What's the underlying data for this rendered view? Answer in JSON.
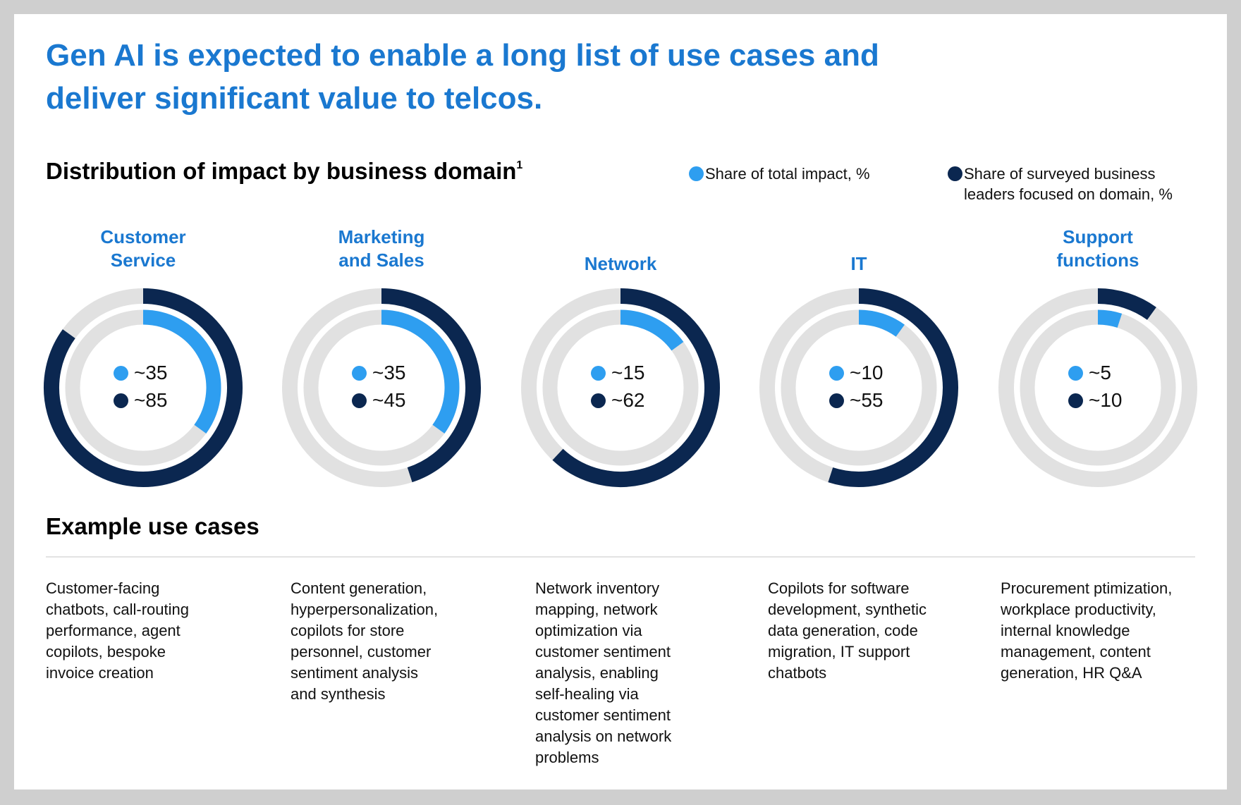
{
  "title": [
    "Gen AI is expected to enable a long list of use cases and",
    "deliver significant value to telcos."
  ],
  "colors": {
    "impact": "#2e9ef0",
    "leaders": "#0b2750",
    "track": "#e1e1e1",
    "accent": "#1a78d0"
  },
  "chart_data": {
    "type": "donut",
    "title": "Distribution of impact by business domain",
    "footnote_marker": "1",
    "legend": [
      "Share of total impact, %",
      "Share of surveyed business leaders focused on domain, %"
    ],
    "legend_placement": "top-right",
    "categories": [
      "Customer Service",
      "Marketing and Sales",
      "Network",
      "IT",
      "Support functions"
    ],
    "series": [
      {
        "name": "Share of total impact, %",
        "values": [
          35,
          35,
          15,
          10,
          5
        ],
        "labels": [
          "~35",
          "~35",
          "~15",
          "~10",
          "~5"
        ]
      },
      {
        "name": "Share of surveyed business leaders focused on domain, %",
        "values": [
          85,
          45,
          62,
          55,
          10
        ],
        "labels": [
          "~85",
          "~45",
          "~62",
          "~55",
          "~10"
        ]
      }
    ]
  },
  "domain_labels": [
    [
      "Customer",
      "Service"
    ],
    [
      "Marketing",
      "and Sales"
    ],
    [
      "Network"
    ],
    [
      "IT"
    ],
    [
      "Support",
      "functions"
    ]
  ],
  "examples": {
    "title": "Example use cases",
    "items": [
      [
        "Customer-facing",
        "chatbots, call-routing",
        "performance, agent",
        "copilots, bespoke",
        "invoice creation"
      ],
      [
        "Content generation,",
        "hyperpersonalization,",
        "copilots for store",
        "personnel, customer",
        "sentiment analysis",
        "and synthesis"
      ],
      [
        "Network inventory",
        "mapping, network",
        "optimization via",
        "customer sentiment",
        "analysis, enabling",
        "self-healing via",
        "customer sentiment",
        "analysis on network",
        "problems"
      ],
      [
        "Copilots for software",
        "development, synthetic",
        "data generation, code",
        "migration, IT support",
        "chatbots"
      ],
      [
        "Procurement ptimization,",
        "workplace productivity,",
        "internal knowledge",
        "management, content",
        "generation, HR Q&A"
      ]
    ]
  }
}
